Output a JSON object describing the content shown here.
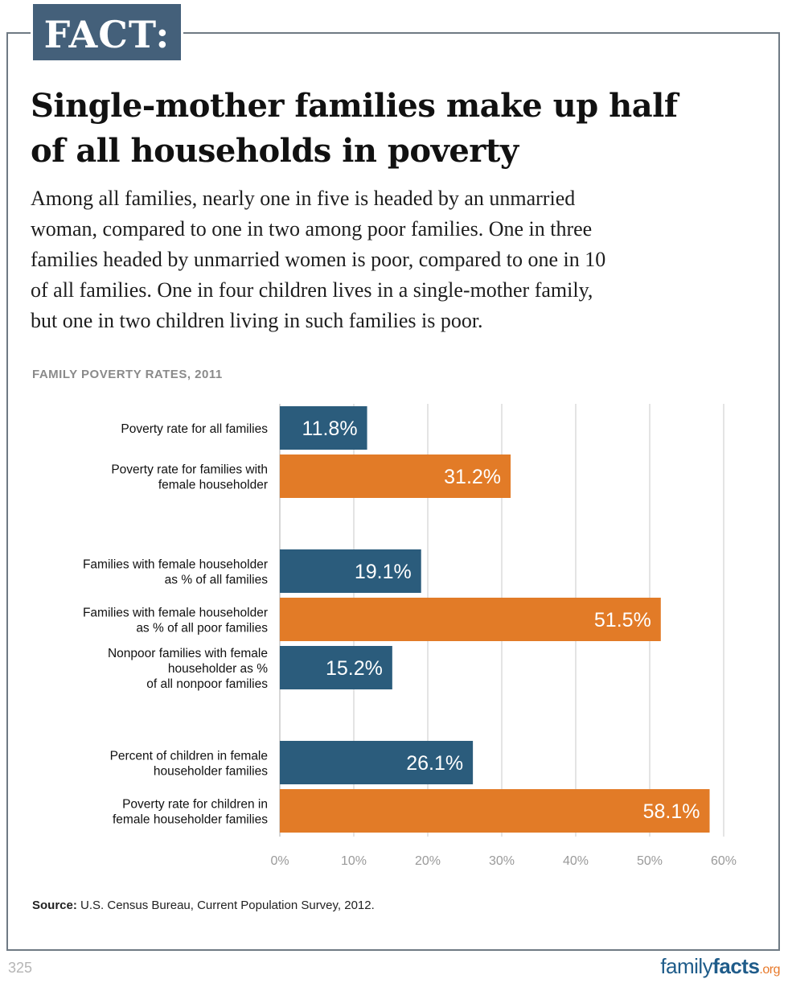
{
  "badge": "FACT:",
  "headline_line1": "Single-mother families make up half",
  "headline_line2": "of all households in poverty",
  "dek": [
    "Among all families, nearly one in five is headed by an unmarried",
    "woman, compared to one in two among poor families. One in three",
    "families headed by unmarried women is poor, compared to one in 10",
    "of all families. One in four children lives in a single-mother family,",
    "but one in two children living in such families is poor."
  ],
  "chart_data": {
    "type": "bar",
    "orientation": "horizontal",
    "title": "FAMILY POVERTY RATES, 2011",
    "xlim": [
      0,
      60
    ],
    "grid": true,
    "x_ticks": [
      "0%",
      "10%",
      "20%",
      "30%",
      "40%",
      "50%",
      "60%"
    ],
    "colors": {
      "blue": "#2b5c7c",
      "orange": "#e27b27"
    },
    "bars": [
      {
        "label": [
          "Poverty rate for all families"
        ],
        "value": 11.8,
        "value_label": "11.8%",
        "color": "blue",
        "group": 0
      },
      {
        "label": [
          "Poverty rate for families with",
          "female householder"
        ],
        "value": 31.2,
        "value_label": "31.2%",
        "color": "orange",
        "group": 0
      },
      {
        "label": [
          "Families with female householder",
          "as % of all families"
        ],
        "value": 19.1,
        "value_label": "19.1%",
        "color": "blue",
        "group": 1
      },
      {
        "label": [
          "Families with female householder",
          "as % of all poor families"
        ],
        "value": 51.5,
        "value_label": "51.5%",
        "color": "orange",
        "group": 1
      },
      {
        "label": [
          "Nonpoor families with female",
          "householder as %",
          "of all nonpoor families"
        ],
        "value": 15.2,
        "value_label": "15.2%",
        "color": "blue",
        "group": 1
      },
      {
        "label": [
          "Percent of children in female",
          "householder families"
        ],
        "value": 26.1,
        "value_label": "26.1%",
        "color": "blue",
        "group": 2
      },
      {
        "label": [
          "Poverty rate for children in",
          "female householder families"
        ],
        "value": 58.1,
        "value_label": "58.1%",
        "color": "orange",
        "group": 2
      }
    ]
  },
  "source_label": "Source:",
  "source_text": " U.S. Census Bureau, Current Population Survey, 2012.",
  "page_number": "325",
  "logo": {
    "part1": "family",
    "part2": "facts",
    "part3": ".org"
  }
}
